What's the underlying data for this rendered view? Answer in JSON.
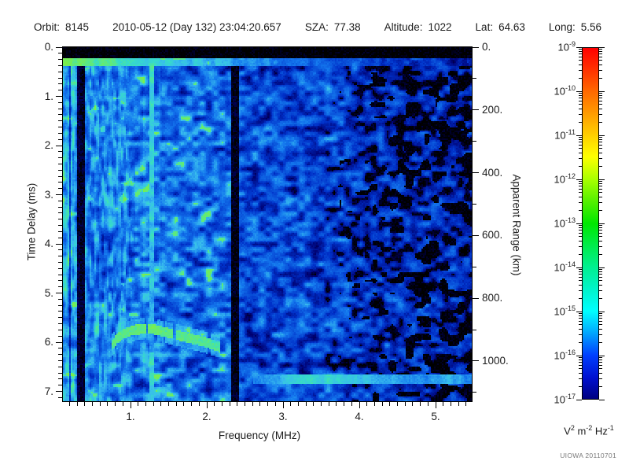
{
  "header": {
    "fields": [
      {
        "label": "Orbit:",
        "value": "8145"
      },
      {
        "label": "",
        "value": "2010-05-12 (Day 132) 23:04:20.657"
      },
      {
        "label": "SZA:",
        "value": "77.38"
      },
      {
        "label": "Altitude:",
        "value": "1022"
      },
      {
        "label": "Lat:",
        "value": "64.63"
      },
      {
        "label": "Long:",
        "value": "5.56"
      }
    ]
  },
  "footer": {
    "credit": "UIOWA 20110701"
  },
  "chart_data": {
    "type": "heatmap",
    "description": "Radar sounder ionogram: received spectral density vs frequency and time delay",
    "x_axis": {
      "label": "Frequency (MHz)",
      "min": 0.113,
      "max": 5.474,
      "minor_step": 0.1,
      "major_ticks": [
        {
          "v": 1,
          "label": "1."
        },
        {
          "v": 2,
          "label": "2."
        },
        {
          "v": 3,
          "label": "3."
        },
        {
          "v": 4,
          "label": "4."
        },
        {
          "v": 5,
          "label": "5."
        }
      ]
    },
    "y_axis_left": {
      "label": "Time Delay (ms)",
      "min": 0,
      "max": 7.2,
      "minor_step": 0.125,
      "major_ticks": [
        {
          "v": 0,
          "label": "0."
        },
        {
          "v": 1,
          "label": "1."
        },
        {
          "v": 2,
          "label": "2."
        },
        {
          "v": 3,
          "label": "3."
        },
        {
          "v": 4,
          "label": "4."
        },
        {
          "v": 5,
          "label": "5."
        },
        {
          "v": 6,
          "label": "6."
        },
        {
          "v": 7,
          "label": "7."
        }
      ]
    },
    "y_axis_right": {
      "label": "Apparent Range (km)",
      "min": 0,
      "max": 1128,
      "minor_step": 100,
      "major_ticks": [
        {
          "v": 0,
          "label": "0."
        },
        {
          "v": 200,
          "label": "200."
        },
        {
          "v": 400,
          "label": "400."
        },
        {
          "v": 600,
          "label": "600."
        },
        {
          "v": 800,
          "label": "800."
        },
        {
          "v": 1000,
          "label": "1000."
        }
      ]
    },
    "colorbar": {
      "scale": "log",
      "unit_parts": [
        {
          "text": "V",
          "sup": "2"
        },
        {
          "text": " m",
          "sup": "-2"
        },
        {
          "text": " Hz",
          "sup": "-1"
        }
      ],
      "ticks": [
        {
          "exp": -9,
          "base": "10",
          "sup": "-9"
        },
        {
          "exp": -10,
          "base": "10",
          "sup": "-10"
        },
        {
          "exp": -11,
          "base": "10",
          "sup": "-11"
        },
        {
          "exp": -12,
          "base": "10",
          "sup": "-12"
        },
        {
          "exp": -13,
          "base": "10",
          "sup": "-13"
        },
        {
          "exp": -14,
          "base": "10",
          "sup": "-14"
        },
        {
          "exp": -15,
          "base": "10",
          "sup": "-15"
        },
        {
          "exp": -16,
          "base": "10",
          "sup": "-16"
        },
        {
          "exp": -17,
          "base": "10",
          "sup": "-17"
        }
      ],
      "palette": [
        [
          0,
          "#ff0000"
        ],
        [
          0.07,
          "#ff3800"
        ],
        [
          0.125,
          "#ff6a00"
        ],
        [
          0.19,
          "#ff9e00"
        ],
        [
          0.25,
          "#ffd000"
        ],
        [
          0.31,
          "#fdff00"
        ],
        [
          0.375,
          "#a8ff00"
        ],
        [
          0.44,
          "#50f000"
        ],
        [
          0.5,
          "#00e800"
        ],
        [
          0.56,
          "#00ec48"
        ],
        [
          0.625,
          "#00f090"
        ],
        [
          0.69,
          "#00f4cc"
        ],
        [
          0.75,
          "#00ffff"
        ],
        [
          0.81,
          "#00aaff"
        ],
        [
          0.875,
          "#0040ff"
        ],
        [
          0.94,
          "#0010d0"
        ],
        [
          1,
          "#000080"
        ]
      ]
    },
    "data_palette": [
      [
        0,
        "#000000"
      ],
      [
        0.1,
        "#000070"
      ],
      [
        0.28,
        "#0030c8"
      ],
      [
        0.5,
        "#1478ee"
      ],
      [
        0.66,
        "#38bcee"
      ],
      [
        0.78,
        "#36dcc8"
      ],
      [
        0.88,
        "#58e888"
      ],
      [
        1,
        "#7cee48"
      ]
    ],
    "noise_profile": [
      {
        "f": 0.113,
        "base": 0.52,
        "amp": 0.5,
        "stripe": 0.6
      },
      {
        "f": 0.95,
        "base": 0.5,
        "amp": 0.48,
        "stripe": 0.58
      },
      {
        "f": 1.1,
        "base": 0.47,
        "amp": 0.42,
        "stripe": 0.12
      },
      {
        "f": 2.3,
        "base": 0.45,
        "amp": 0.4,
        "stripe": 0.05
      },
      {
        "f": 2.5,
        "base": 0.36,
        "amp": 0.34,
        "stripe": 0.0
      },
      {
        "f": 3.6,
        "base": 0.33,
        "amp": 0.34,
        "stripe": 0.0
      },
      {
        "f": 4.2,
        "base": 0.26,
        "amp": 0.33,
        "stripe": 0.0
      },
      {
        "f": 5.474,
        "base": 0.21,
        "amp": 0.32,
        "stripe": 0.0
      }
    ],
    "black_threshold": [
      {
        "f": 3.55,
        "th": 0.0
      },
      {
        "f": 4.2,
        "th": 0.26
      },
      {
        "f": 5.474,
        "th": 0.44
      }
    ],
    "features": [
      {
        "name": "transmit-blanking-band",
        "type": "top-black-band",
        "t_range": [
          0,
          0.22
        ]
      },
      {
        "name": "first-return-line",
        "type": "h-line",
        "t": 0.29,
        "t_span": [
          0.22,
          0.37
        ],
        "intensity": 0.95,
        "falloff_per_mhz": 0.15
      },
      {
        "name": "narrowband-interference-line",
        "type": "v-line",
        "f": 1.28,
        "half_width": 0.03,
        "halo_width": 0.12,
        "intensity": 0.8
      },
      {
        "name": "rfi-dropout-1",
        "type": "v-dark-band",
        "f_range": [
          0.19,
          0.21
        ],
        "strength": 0.45
      },
      {
        "name": "rfi-dropout-2",
        "type": "v-dark-band",
        "f_range": [
          0.295,
          0.33
        ],
        "strength": 0.1
      },
      {
        "name": "rfi-dropout-3",
        "type": "v-dark-band",
        "f_range": [
          0.35,
          0.405
        ],
        "strength": 0.07
      },
      {
        "name": "rfi-dropout-4",
        "type": "v-dark-band",
        "f_range": [
          2.32,
          2.43
        ],
        "strength": 0.06
      },
      {
        "name": "ionospheric-echo-trace",
        "type": "trace",
        "intensity": 0.9,
        "core_half_width": 0.1,
        "halo_half_width": 0.22,
        "points": [
          [
            0.76,
            6.06
          ],
          [
            0.82,
            5.93
          ],
          [
            0.92,
            5.82
          ],
          [
            1.05,
            5.75
          ],
          [
            1.25,
            5.72
          ],
          [
            1.45,
            5.79
          ],
          [
            1.62,
            5.86
          ],
          [
            1.8,
            5.93
          ],
          [
            1.98,
            6.0
          ],
          [
            2.18,
            6.1
          ]
        ]
      },
      {
        "name": "surface-reflection-line",
        "type": "surface-line",
        "t": 6.75,
        "half_width": 0.09,
        "f_start": 2.6,
        "peak_f": 3.6,
        "intensity": 0.68
      }
    ]
  }
}
